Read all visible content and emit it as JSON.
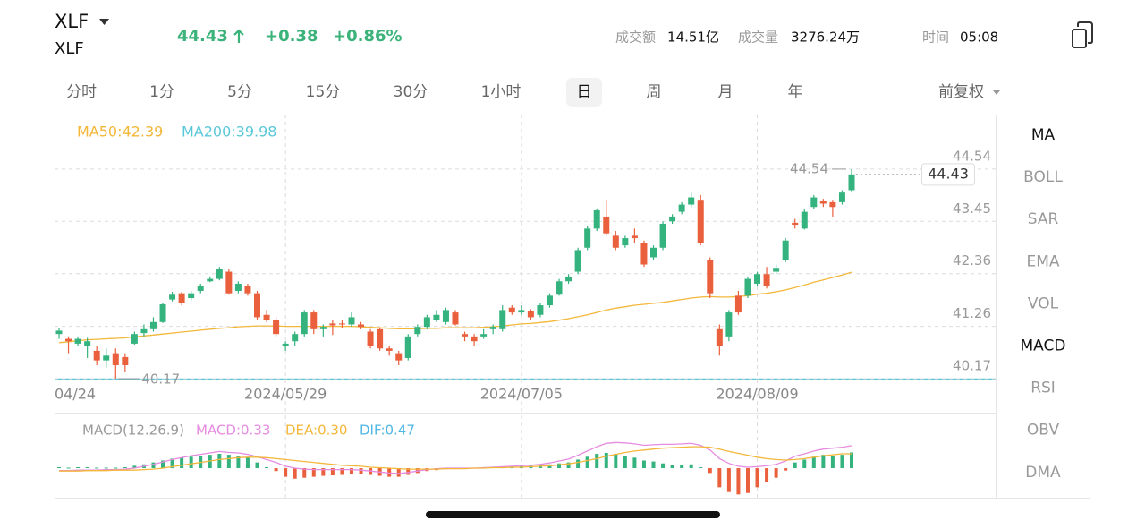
{
  "header": {
    "symbol": "XLF",
    "name": "XLF",
    "price": "44.43",
    "change": "+0.38",
    "change_pct": "+0.86%",
    "stats": [
      {
        "label": "成交额",
        "value": "14.51亿"
      },
      {
        "label": "成交量",
        "value": "3276.24万"
      },
      {
        "label": "时间",
        "value": "05:08"
      }
    ]
  },
  "tabs": {
    "items": [
      "分时",
      "1分",
      "5分",
      "15分",
      "30分",
      "1小时",
      "日",
      "周",
      "月",
      "年"
    ],
    "selected": 6,
    "adjust": "前复权"
  },
  "indicators": {
    "items": [
      "MA",
      "BOLL",
      "SAR",
      "EMA",
      "VOL",
      "MACD",
      "RSI",
      "OBV",
      "DMA"
    ],
    "active": [
      0,
      5
    ]
  },
  "chart_data": [
    {
      "type": "candlestick",
      "categories": [
        "04/24",
        null,
        null,
        null,
        null,
        null,
        null,
        null,
        null,
        null,
        null,
        null,
        null,
        null,
        null,
        null,
        null,
        null,
        null,
        null,
        null,
        null,
        null,
        null,
        "2024/05/29",
        null,
        null,
        null,
        null,
        null,
        null,
        null,
        null,
        null,
        null,
        null,
        null,
        null,
        null,
        null,
        null,
        null,
        null,
        null,
        null,
        null,
        null,
        null,
        null,
        "2024/07/05",
        null,
        null,
        null,
        null,
        null,
        null,
        null,
        null,
        null,
        null,
        null,
        null,
        null,
        null,
        null,
        null,
        null,
        null,
        null,
        null,
        null,
        null,
        null,
        null,
        "2024/08/09",
        null,
        null,
        null,
        null,
        null,
        null,
        null,
        null,
        null,
        null
      ],
      "open": [
        41.1,
        41.0,
        40.9,
        40.85,
        40.75,
        40.55,
        40.7,
        40.62,
        40.9,
        41.12,
        41.2,
        41.35,
        41.82,
        41.95,
        41.85,
        42.0,
        42.2,
        42.25,
        42.4,
        42.0,
        42.1,
        41.95,
        41.5,
        41.4,
        40.85,
        40.95,
        41.1,
        41.55,
        41.2,
        41.32,
        41.32,
        41.3,
        41.3,
        41.15,
        41.2,
        40.8,
        40.7,
        40.6,
        41.1,
        41.25,
        41.4,
        41.35,
        41.55,
        41.1,
        41.05,
        41.05,
        41.2,
        41.2,
        41.65,
        41.55,
        41.58,
        41.5,
        41.7,
        41.92,
        42.2,
        42.4,
        42.9,
        43.3,
        43.55,
        43.15,
        42.95,
        43.15,
        43.0,
        42.7,
        42.9,
        43.45,
        43.65,
        43.8,
        43.9,
        42.65,
        41.2,
        41.05,
        41.9,
        41.9,
        42.15,
        42.35,
        42.4,
        42.65,
        43.42,
        43.3,
        43.75,
        43.88,
        43.85,
        43.85,
        44.1
      ],
      "high": [
        41.22,
        41.05,
        41.05,
        41.02,
        40.85,
        40.8,
        40.8,
        40.7,
        41.15,
        41.3,
        41.45,
        41.75,
        41.98,
        41.98,
        42.0,
        42.15,
        42.3,
        42.5,
        42.45,
        42.2,
        42.15,
        42.0,
        41.6,
        41.45,
        40.95,
        41.15,
        41.6,
        41.6,
        41.3,
        41.4,
        41.4,
        41.55,
        41.35,
        41.2,
        41.22,
        40.85,
        40.75,
        41.1,
        41.3,
        41.5,
        41.6,
        41.65,
        41.6,
        41.15,
        41.1,
        41.2,
        41.3,
        41.7,
        41.7,
        41.7,
        41.62,
        41.75,
        41.95,
        42.25,
        42.35,
        42.9,
        43.35,
        43.72,
        43.9,
        43.25,
        43.15,
        43.3,
        43.05,
        42.95,
        43.45,
        43.6,
        43.85,
        44.05,
        44.0,
        42.7,
        41.3,
        41.6,
        42.0,
        42.3,
        42.4,
        42.5,
        42.55,
        43.1,
        43.5,
        43.7,
        44.0,
        43.92,
        43.9,
        44.1,
        44.54
      ],
      "low": [
        41.0,
        40.7,
        40.85,
        40.6,
        40.45,
        40.4,
        40.17,
        40.3,
        40.88,
        41.05,
        41.15,
        41.33,
        41.78,
        41.7,
        41.8,
        41.95,
        42.18,
        42.22,
        41.92,
        41.95,
        41.9,
        41.4,
        41.35,
        41.05,
        40.75,
        40.85,
        41.05,
        41.1,
        41.05,
        41.08,
        41.22,
        41.25,
        41.2,
        40.8,
        40.75,
        40.65,
        40.45,
        40.55,
        41.05,
        41.2,
        41.35,
        41.3,
        41.28,
        40.95,
        40.85,
        41.0,
        41.1,
        41.15,
        41.5,
        41.5,
        41.4,
        41.45,
        41.65,
        41.9,
        42.15,
        42.35,
        42.85,
        43.25,
        43.15,
        42.85,
        42.9,
        43.0,
        42.5,
        42.65,
        42.85,
        43.4,
        43.6,
        43.75,
        42.95,
        41.85,
        40.65,
        40.95,
        41.5,
        41.85,
        42.1,
        42.05,
        42.35,
        42.6,
        43.3,
        43.28,
        43.7,
        43.75,
        43.55,
        43.8,
        44.05
      ],
      "close": [
        41.17,
        40.95,
        41.0,
        40.95,
        40.55,
        40.65,
        40.45,
        40.45,
        41.1,
        41.2,
        41.35,
        41.72,
        41.92,
        41.75,
        41.95,
        42.1,
        42.25,
        42.45,
        41.95,
        42.15,
        41.95,
        41.45,
        41.4,
        41.1,
        40.9,
        41.1,
        41.55,
        41.2,
        41.25,
        41.28,
        41.3,
        41.45,
        41.25,
        40.85,
        40.8,
        40.75,
        40.55,
        41.05,
        41.25,
        41.45,
        41.5,
        41.6,
        41.3,
        41.05,
        40.95,
        41.1,
        41.25,
        41.6,
        41.55,
        41.6,
        41.45,
        41.7,
        41.9,
        42.2,
        42.3,
        42.85,
        43.3,
        43.68,
        43.2,
        42.9,
        43.1,
        43.1,
        42.55,
        42.9,
        43.4,
        43.55,
        43.8,
        43.95,
        43.0,
        41.95,
        40.85,
        41.55,
        41.55,
        42.25,
        42.35,
        42.1,
        42.48,
        43.05,
        43.38,
        43.65,
        43.95,
        43.82,
        43.75,
        44.05,
        44.43
      ],
      "up_color": "#35b37e",
      "down_color": "#ea5f3c",
      "lines": [
        {
          "color": "#f3b73a",
          "values": [
            40.92,
            40.94,
            40.96,
            40.98,
            40.99,
            41.0,
            41.01,
            41.02,
            41.04,
            41.06,
            41.08,
            41.1,
            41.12,
            41.14,
            41.16,
            41.18,
            41.2,
            41.22,
            41.23,
            41.25,
            41.26,
            41.27,
            41.27,
            41.27,
            41.26,
            41.26,
            41.26,
            41.26,
            41.26,
            41.26,
            41.26,
            41.26,
            41.25,
            41.24,
            41.23,
            41.22,
            41.21,
            41.21,
            41.21,
            41.22,
            41.22,
            41.23,
            41.23,
            41.23,
            41.23,
            41.24,
            41.25,
            41.27,
            41.29,
            41.31,
            41.32,
            41.34,
            41.36,
            41.39,
            41.42,
            41.46,
            41.5,
            41.55,
            41.6,
            41.64,
            41.67,
            41.7,
            41.72,
            41.74,
            41.76,
            41.79,
            41.82,
            41.85,
            41.87,
            41.88,
            41.87,
            41.87,
            41.88,
            41.9,
            41.93,
            41.95,
            41.98,
            42.02,
            42.07,
            42.12,
            42.18,
            42.23,
            42.28,
            42.33,
            42.39
          ]
        }
      ],
      "legend": [
        {
          "text": "MA50:42.39",
          "color": "#f3b73a"
        },
        {
          "text": "MA200:39.98",
          "color": "#5bc8d8"
        }
      ],
      "ylim": [
        40.17,
        45.64
      ],
      "yticks": [
        40.17,
        41.26,
        42.36,
        43.45,
        44.54
      ],
      "grid": true,
      "high_marker": 44.54,
      "low_marker": 40.17,
      "last_price": 44.43
    },
    {
      "type": "macd",
      "title": "MACD(12.26.9)",
      "legend": [
        {
          "text": "MACD:0.33",
          "color": "#e58be0"
        },
        {
          "text": "DEA:0.30",
          "color": "#f3b73a"
        },
        {
          "text": "DIF:0.47",
          "color": "#4fb7e3"
        }
      ],
      "histogram": [
        0.02,
        0.01,
        0.02,
        0.02,
        0.01,
        0.01,
        0.01,
        0.02,
        0.05,
        0.08,
        0.12,
        0.16,
        0.2,
        0.22,
        0.24,
        0.26,
        0.28,
        0.3,
        0.28,
        0.26,
        0.22,
        0.12,
        0.02,
        -0.06,
        -0.18,
        -0.22,
        -0.2,
        -0.18,
        -0.16,
        -0.15,
        -0.14,
        -0.12,
        -0.12,
        -0.14,
        -0.16,
        -0.18,
        -0.18,
        -0.14,
        -0.1,
        -0.06,
        -0.04,
        -0.02,
        -0.02,
        -0.01,
        0.01,
        0.02,
        0.03,
        0.03,
        0.04,
        0.05,
        0.05,
        0.06,
        0.08,
        0.1,
        0.12,
        0.18,
        0.24,
        0.3,
        0.32,
        0.3,
        0.26,
        0.22,
        0.16,
        0.14,
        0.1,
        0.06,
        0.06,
        0.08,
        0.02,
        -0.1,
        -0.4,
        -0.5,
        -0.55,
        -0.52,
        -0.4,
        -0.3,
        -0.2,
        -0.05,
        0.12,
        0.18,
        0.24,
        0.28,
        0.26,
        0.28,
        0.33
      ],
      "lines": [
        {
          "color": "#e58be0",
          "values": [
            -0.05,
            -0.05,
            -0.04,
            -0.04,
            -0.04,
            -0.03,
            -0.03,
            -0.02,
            0.0,
            0.04,
            0.08,
            0.13,
            0.18,
            0.22,
            0.26,
            0.29,
            0.32,
            0.35,
            0.33,
            0.32,
            0.29,
            0.24,
            0.18,
            0.12,
            0.04,
            0.0,
            -0.02,
            -0.03,
            -0.03,
            -0.03,
            -0.03,
            -0.03,
            -0.04,
            -0.06,
            -0.08,
            -0.1,
            -0.11,
            -0.09,
            -0.06,
            -0.03,
            -0.01,
            0.0,
            0.0,
            0.0,
            0.0,
            0.01,
            0.02,
            0.03,
            0.04,
            0.05,
            0.06,
            0.08,
            0.11,
            0.15,
            0.19,
            0.27,
            0.36,
            0.45,
            0.52,
            0.54,
            0.53,
            0.51,
            0.48,
            0.49,
            0.5,
            0.5,
            0.51,
            0.52,
            0.48,
            0.38,
            0.2,
            0.1,
            0.04,
            0.02,
            0.03,
            0.05,
            0.08,
            0.15,
            0.25,
            0.3,
            0.36,
            0.4,
            0.42,
            0.44,
            0.47
          ]
        },
        {
          "color": "#f3b73a",
          "values": [
            -0.06,
            -0.06,
            -0.06,
            -0.05,
            -0.05,
            -0.05,
            -0.04,
            -0.04,
            -0.04,
            -0.03,
            -0.02,
            0.0,
            0.03,
            0.06,
            0.09,
            0.12,
            0.15,
            0.18,
            0.2,
            0.22,
            0.23,
            0.23,
            0.22,
            0.2,
            0.18,
            0.16,
            0.14,
            0.12,
            0.1,
            0.08,
            0.06,
            0.05,
            0.04,
            0.02,
            0.01,
            0.0,
            -0.01,
            -0.02,
            -0.02,
            -0.02,
            -0.02,
            -0.01,
            -0.01,
            -0.01,
            0.0,
            0.0,
            0.01,
            0.01,
            0.02,
            0.02,
            0.03,
            0.04,
            0.05,
            0.07,
            0.09,
            0.12,
            0.16,
            0.2,
            0.25,
            0.29,
            0.33,
            0.36,
            0.38,
            0.4,
            0.42,
            0.43,
            0.44,
            0.45,
            0.45,
            0.44,
            0.4,
            0.35,
            0.31,
            0.27,
            0.23,
            0.2,
            0.18,
            0.17,
            0.18,
            0.2,
            0.23,
            0.26,
            0.28,
            0.3,
            0.3
          ]
        }
      ],
      "up_color": "#35b37e",
      "down_color": "#ea5f3c",
      "ylim": [
        -0.6,
        0.62
      ]
    }
  ]
}
